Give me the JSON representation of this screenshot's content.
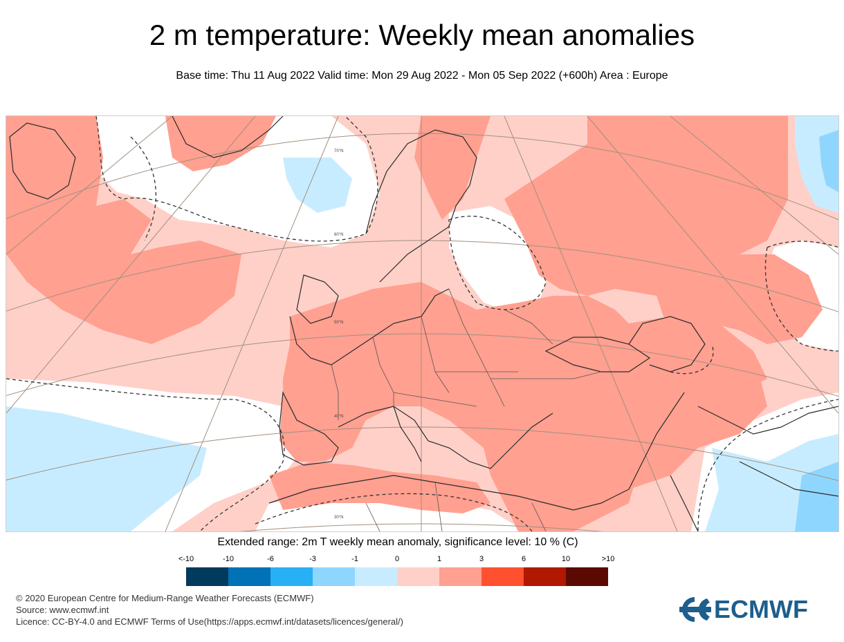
{
  "title": "2 m temperature: Weekly mean anomalies",
  "subtitle": "Base time: Thu 11 Aug 2022 Valid time: Mon 29 Aug 2022 - Mon 05 Sep 2022 (+600h) Area : Europe",
  "map": {
    "area": "Europe",
    "latitude_labels": [
      "70°N",
      "60°N",
      "50°N",
      "40°N",
      "30°N"
    ],
    "colors": {
      "land_border": "#3a3a3a",
      "graticule": "#9a8a7a",
      "contour": "#333333"
    }
  },
  "legend": {
    "title": "Extended range: 2m T weekly mean anomaly, significance level: 10 % (C)",
    "labels": [
      "<-10",
      "-10",
      "-6",
      "-3",
      "-1",
      "0",
      "1",
      "3",
      "6",
      "10",
      ">10"
    ],
    "colors": [
      "#003a5c",
      "#0072b5",
      "#28b0f5",
      "#8fd6ff",
      "#c8ecff",
      "#ffd0c8",
      "#ffa090",
      "#ff5030",
      "#b01800",
      "#5a0a00"
    ]
  },
  "credits": {
    "line1": "© 2020 European Centre for Medium-Range Weather Forecasts (ECMWF)",
    "line2": "Source: www.ecmwf.int",
    "line3": "Licence: CC-BY-4.0 and ECMWF Terms of Use(https://apps.ecmwf.int/datasets/licences/general/)"
  },
  "logo": {
    "text": "ECMWF",
    "color": "#1d5e8d",
    "icon": "ecmwf-logo-icon"
  }
}
